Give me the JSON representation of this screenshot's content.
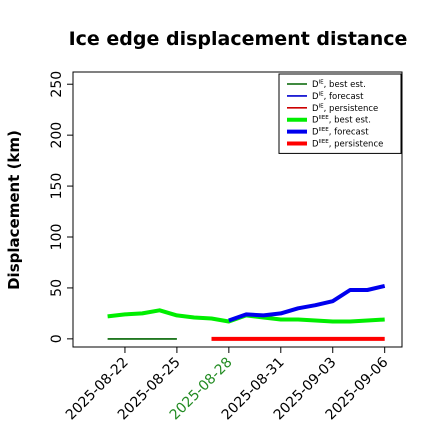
{
  "chart_data": {
    "type": "line",
    "title": "Ice edge displacement distance",
    "xlabel": "",
    "ylabel": "Displacement (km)",
    "ylim": [
      -8,
      262
    ],
    "xlim": [
      "2025-08-19",
      "2025-09-07"
    ],
    "x_ticks": [
      "2025-08-22",
      "2025-08-25",
      "2025-08-28",
      "2025-08-31",
      "2025-09-03",
      "2025-09-06"
    ],
    "x_tick_colors": [
      "#000000",
      "#000000",
      "#228B22",
      "#000000",
      "#000000",
      "#000000"
    ],
    "y_ticks": [
      0,
      50,
      100,
      150,
      200,
      250
    ],
    "grid": false,
    "legend_position": "top-right",
    "series": [
      {
        "name_base": "D",
        "name_sup": "IE",
        "name_suffix": ", best est.",
        "color": "#006400",
        "width": 1.6,
        "x": [
          "2025-08-21",
          "2025-08-22",
          "2025-08-23",
          "2025-08-24",
          "2025-08-25"
        ],
        "y": [
          0,
          0,
          0,
          0,
          0
        ]
      },
      {
        "name_base": "D",
        "name_sup": "IE",
        "name_suffix": ", forecast",
        "color": "#0000CD",
        "width": 1.6,
        "x": [],
        "y": []
      },
      {
        "name_base": "D",
        "name_sup": "IE",
        "name_suffix": ", persistence",
        "color": "#CC0000",
        "width": 1.6,
        "x": [],
        "y": []
      },
      {
        "name_base": "D",
        "name_sup": "IIEE",
        "name_suffix": ", best est.",
        "color": "#00EE00",
        "width": 4,
        "x": [
          "2025-08-21",
          "2025-08-22",
          "2025-08-23",
          "2025-08-24",
          "2025-08-25",
          "2025-08-26",
          "2025-08-27",
          "2025-08-28",
          "2025-08-29",
          "2025-08-30",
          "2025-08-31",
          "2025-09-01",
          "2025-09-02",
          "2025-09-03",
          "2025-09-04",
          "2025-09-05",
          "2025-09-06"
        ],
        "y": [
          22,
          24,
          25,
          28,
          23,
          21,
          20,
          17,
          23,
          21,
          19,
          19,
          18,
          17,
          17,
          18,
          19
        ]
      },
      {
        "name_base": "D",
        "name_sup": "IIEE",
        "name_suffix": ", forecast",
        "color": "#0000EE",
        "width": 4,
        "x": [
          "2025-08-28",
          "2025-08-29",
          "2025-08-30",
          "2025-08-31",
          "2025-09-01",
          "2025-09-02",
          "2025-09-03",
          "2025-09-04",
          "2025-09-05",
          "2025-09-06"
        ],
        "y": [
          18,
          24,
          23,
          25,
          30,
          33,
          37,
          48,
          48,
          52
        ]
      },
      {
        "name_base": "D",
        "name_sup": "IIEE",
        "name_suffix": ", persistence",
        "color": "#FF0000",
        "width": 4,
        "x": [
          "2025-08-27",
          "2025-08-28",
          "2025-08-29",
          "2025-08-30",
          "2025-08-31",
          "2025-09-01",
          "2025-09-02",
          "2025-09-03",
          "2025-09-04",
          "2025-09-05",
          "2025-09-06"
        ],
        "y": [
          0,
          0,
          0,
          0,
          0,
          0,
          0,
          0,
          0,
          0,
          0
        ]
      }
    ]
  }
}
